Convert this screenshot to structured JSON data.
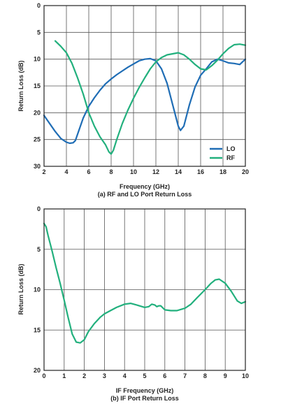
{
  "chart_data": [
    {
      "type": "line",
      "caption": "(a) RF and LO Port Return Loss",
      "xlabel": "Frequency (GHz)",
      "ylabel": "Return Loss (dB)",
      "xlim": [
        2,
        20
      ],
      "ylim": [
        0,
        30
      ],
      "y_inverted": true,
      "x_ticks": [
        2,
        4,
        6,
        8,
        10,
        12,
        14,
        16,
        18,
        20
      ],
      "y_ticks": [
        0,
        5,
        10,
        15,
        20,
        25,
        30
      ],
      "grid": true,
      "legend_position": "bottom-right",
      "series": [
        {
          "name": "LO",
          "color": "#1f6db5",
          "x": [
            2,
            2.5,
            3,
            3.5,
            4,
            4.3,
            4.6,
            4.8,
            5,
            5.5,
            6,
            6.5,
            7,
            7.5,
            8,
            8.5,
            9,
            9.5,
            10,
            10.5,
            11,
            11.5,
            12,
            12.5,
            13,
            13.5,
            14,
            14.2,
            14.5,
            15,
            15.5,
            16,
            16.5,
            17,
            17.5,
            18,
            18.5,
            19,
            19.5,
            20
          ],
          "y": [
            20.5,
            22,
            23.5,
            24.8,
            25.5,
            25.7,
            25.6,
            25.2,
            24,
            21,
            18.8,
            17.2,
            15.8,
            14.6,
            13.7,
            12.9,
            12.2,
            11.5,
            10.9,
            10.3,
            10.0,
            9.9,
            10.3,
            11.8,
            14.5,
            18.5,
            22.5,
            23.3,
            22.5,
            18.5,
            15.2,
            13,
            11.8,
            10.5,
            10.0,
            10.3,
            10.7,
            10.8,
            11,
            10.0
          ]
        },
        {
          "name": "RF",
          "color": "#22b07d",
          "x": [
            3,
            3.5,
            4,
            4.5,
            5,
            5.5,
            6,
            6.5,
            7,
            7.5,
            7.8,
            8,
            8.2,
            8.5,
            9,
            9.5,
            10,
            10.5,
            11,
            11.5,
            12,
            12.5,
            13,
            13.5,
            14,
            14.5,
            15,
            15.5,
            16,
            16.5,
            17,
            17.5,
            18,
            18.5,
            19,
            19.5,
            20
          ],
          "y": [
            6.6,
            7.6,
            8.8,
            10.8,
            13.5,
            16.5,
            20,
            22.5,
            24.5,
            26,
            27.3,
            27.7,
            27.0,
            25,
            22,
            19.5,
            17.3,
            15.3,
            13.5,
            11.8,
            10.5,
            9.7,
            9.2,
            9.0,
            8.8,
            9.2,
            10.0,
            11.0,
            11.8,
            12.0,
            11.2,
            10.2,
            9.0,
            8.0,
            7.3,
            7.2,
            7.4
          ]
        }
      ]
    },
    {
      "type": "line",
      "caption": "(b) IF Port Return Loss",
      "xlabel": "IF Frequency (GHz)",
      "ylabel": "Return Loss (dB)",
      "xlim": [
        0,
        10
      ],
      "ylim": [
        0,
        20
      ],
      "y_inverted": true,
      "x_ticks": [
        0,
        1,
        2,
        3,
        4,
        5,
        6,
        7,
        8,
        9,
        10
      ],
      "y_ticks": [
        0,
        5,
        10,
        15,
        20
      ],
      "grid": true,
      "series": [
        {
          "color": "#22b07d",
          "x": [
            0,
            0.1,
            0.2,
            0.4,
            0.6,
            0.8,
            1.0,
            1.2,
            1.4,
            1.6,
            1.8,
            2.0,
            2.2,
            2.5,
            2.8,
            3.0,
            3.3,
            3.6,
            4.0,
            4.3,
            4.6,
            5.0,
            5.2,
            5.35,
            5.5,
            5.6,
            5.7,
            5.8,
            6.0,
            6.3,
            6.6,
            7.0,
            7.3,
            7.6,
            8.0,
            8.3,
            8.5,
            8.7,
            9.0,
            9.3,
            9.6,
            9.8,
            10.0
          ],
          "y": [
            1.8,
            2.2,
            3.3,
            5.2,
            7.3,
            9.2,
            11.3,
            13.5,
            15.5,
            16.5,
            16.6,
            16.2,
            15.2,
            14.2,
            13.4,
            13.0,
            12.6,
            12.2,
            11.8,
            11.7,
            11.9,
            12.2,
            12.1,
            11.8,
            11.9,
            12.1,
            12.0,
            12.0,
            12.5,
            12.6,
            12.6,
            12.3,
            11.8,
            11.0,
            10.0,
            9.2,
            8.8,
            8.7,
            9.2,
            10.2,
            11.4,
            11.7,
            11.5
          ]
        }
      ]
    }
  ]
}
